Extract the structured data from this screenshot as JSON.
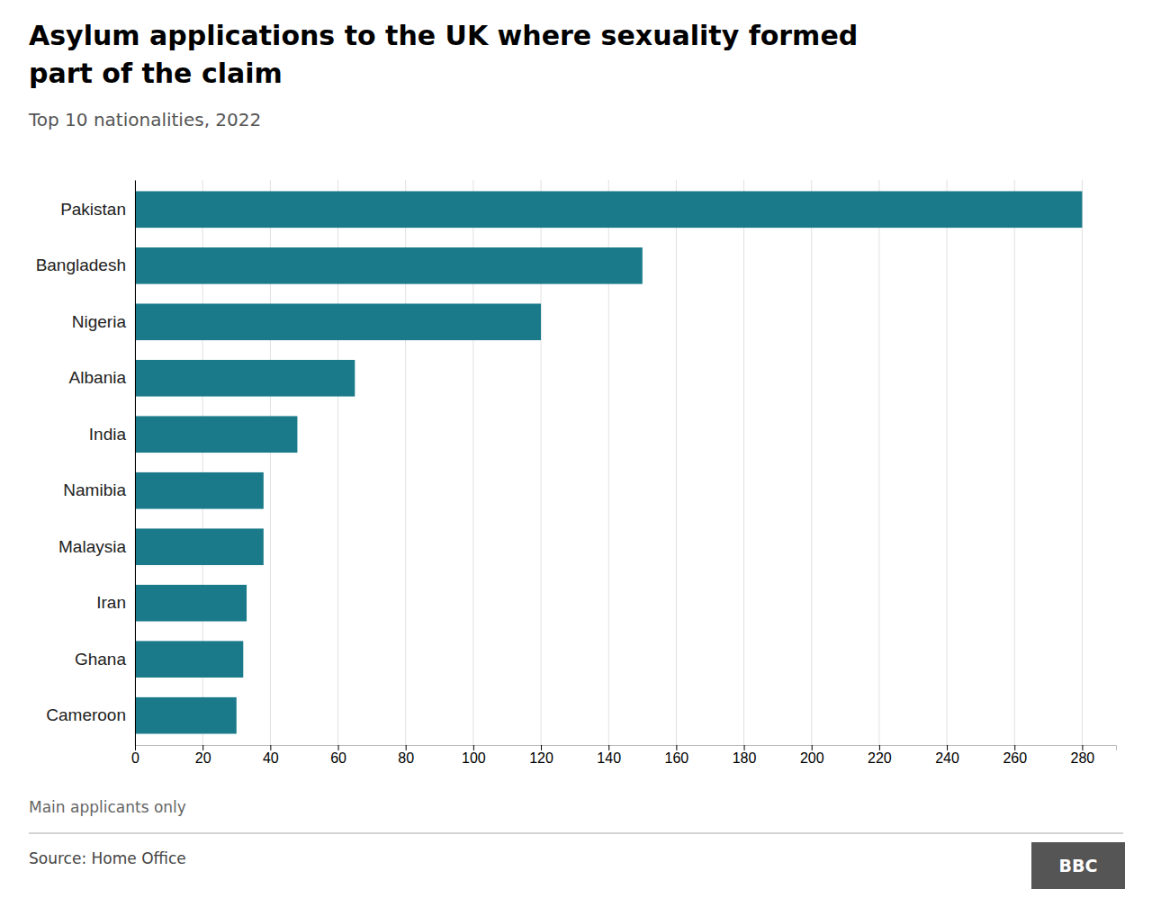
{
  "chart_data": {
    "type": "bar",
    "orientation": "horizontal",
    "title": [
      "Asylum applications to the UK where sexuality formed",
      "part of the claim"
    ],
    "subtitle": "Top 10 nationalities, 2022",
    "categories": [
      "Pakistan",
      "Bangladesh",
      "Nigeria",
      "Albania",
      "India",
      "Namibia",
      "Malaysia",
      "Iran",
      "Ghana",
      "Cameroon"
    ],
    "values": [
      280,
      150,
      120,
      65,
      48,
      38,
      38,
      33,
      32,
      30
    ],
    "color": "#1a7a8a",
    "xlim": [
      0,
      290
    ],
    "xticks": [
      0,
      20,
      40,
      60,
      80,
      100,
      120,
      140,
      160,
      180,
      200,
      220,
      240,
      260,
      280
    ],
    "grid": true,
    "annotations": [
      "Main applicants only",
      "Source: Home Office",
      "BBC"
    ]
  }
}
